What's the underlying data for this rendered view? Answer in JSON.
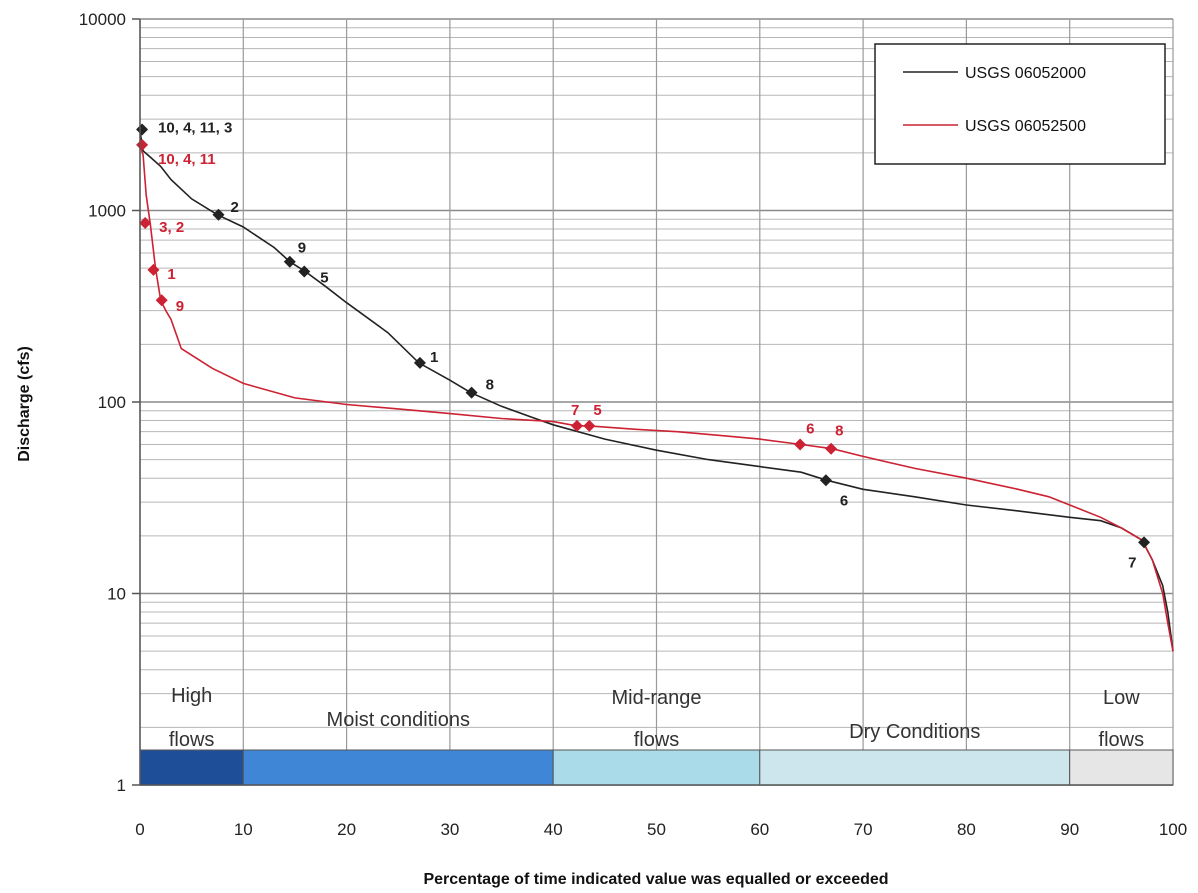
{
  "chart_data": {
    "type": "line",
    "title": "",
    "xlabel": "Percentage of time indicated value was equalled or exceeded",
    "ylabel": "Discharge (cfs)",
    "xlim": [
      0,
      100
    ],
    "ylim": [
      1,
      10000
    ],
    "yscale": "log",
    "grid": true,
    "legend_position": "top-right",
    "x_ticks": [
      "0",
      "10",
      "20",
      "30",
      "40",
      "50",
      "60",
      "70",
      "80",
      "90",
      "100"
    ],
    "y_ticks": [
      "1",
      "10",
      "100",
      "1000",
      "10000"
    ],
    "series": [
      {
        "name": "USGS 06052000",
        "color": "#222222",
        "x": [
          0,
          0.3,
          1,
          2,
          3,
          5,
          7.5,
          10,
          13,
          14.5,
          16,
          18,
          20,
          24,
          27,
          30,
          32,
          35,
          38,
          40,
          45,
          50,
          55,
          60,
          64,
          66.5,
          70,
          75,
          80,
          85,
          90,
          93,
          95,
          97,
          98,
          99,
          99.5,
          100
        ],
        "y": [
          2600,
          2050,
          1900,
          1700,
          1450,
          1150,
          950,
          820,
          640,
          540,
          480,
          400,
          330,
          230,
          160,
          130,
          112,
          95,
          83,
          76,
          64,
          56,
          50,
          46,
          43,
          39,
          35,
          32,
          29,
          27,
          25,
          24,
          22,
          19,
          15,
          11,
          8,
          5
        ]
      },
      {
        "name": "USGS 06052500",
        "color": "#cc2233",
        "x": [
          0,
          0.3,
          0.6,
          1,
          1.5,
          2,
          2.5,
          3,
          4,
          7,
          10,
          15,
          20,
          25,
          30,
          35,
          40,
          42.3,
          43.5,
          48,
          52,
          56,
          60,
          64,
          67,
          70,
          75,
          80,
          85,
          88,
          90,
          93,
          95,
          97,
          98,
          99,
          99.5,
          100
        ],
        "y": [
          2200,
          1950,
          1200,
          850,
          500,
          340,
          300,
          270,
          190,
          150,
          125,
          105,
          97,
          92,
          87,
          82,
          79,
          75,
          75,
          72,
          70,
          67,
          64,
          60,
          57,
          52,
          45,
          40,
          35,
          32,
          29,
          25,
          22,
          19,
          15,
          10,
          7,
          5
        ]
      }
    ],
    "markers": [
      {
        "series": "USGS 06052000",
        "x": 0.2,
        "y": 2650,
        "label": "10, 4, 11, 3"
      },
      {
        "series": "USGS 06052000",
        "x": 7.6,
        "y": 950,
        "label": "2"
      },
      {
        "series": "USGS 06052000",
        "x": 14.5,
        "y": 540,
        "label": "9"
      },
      {
        "series": "USGS 06052000",
        "x": 15.9,
        "y": 480,
        "label": "5"
      },
      {
        "series": "USGS 06052000",
        "x": 27.1,
        "y": 160,
        "label": "1"
      },
      {
        "series": "USGS 06052000",
        "x": 32.1,
        "y": 112,
        "label": "8"
      },
      {
        "series": "USGS 06052000",
        "x": 66.4,
        "y": 39,
        "label": "6"
      },
      {
        "series": "USGS 06052000",
        "x": 97.2,
        "y": 18.5,
        "label": "7"
      },
      {
        "series": "USGS 06052500",
        "x": 0.2,
        "y": 2200,
        "label": "10, 4, 11"
      },
      {
        "series": "USGS 06052500",
        "x": 0.5,
        "y": 860,
        "label": "3, 2"
      },
      {
        "series": "USGS 06052500",
        "x": 1.3,
        "y": 490,
        "label": "1"
      },
      {
        "series": "USGS 06052500",
        "x": 2.1,
        "y": 340,
        "label": "9"
      },
      {
        "series": "USGS 06052500",
        "x": 42.3,
        "y": 75,
        "label": "7"
      },
      {
        "series": "USGS 06052500",
        "x": 43.5,
        "y": 75,
        "label": "5"
      },
      {
        "series": "USGS 06052500",
        "x": 63.9,
        "y": 60,
        "label": "6"
      },
      {
        "series": "USGS 06052500",
        "x": 66.9,
        "y": 57,
        "label": "8"
      }
    ],
    "zones": [
      {
        "label_lines": [
          "High",
          "flows"
        ],
        "from": 0,
        "to": 10,
        "color": "#1f4e99"
      },
      {
        "label_lines": [
          "Moist conditions"
        ],
        "from": 10,
        "to": 40,
        "color": "#3f86d6"
      },
      {
        "label_lines": [
          "Mid-range",
          "flows"
        ],
        "from": 40,
        "to": 60,
        "color": "#a9dbe8"
      },
      {
        "label_lines": [
          "Dry Conditions"
        ],
        "from": 60,
        "to": 90,
        "color": "#cde6ee"
      },
      {
        "label_lines": [
          "Low",
          "flows"
        ],
        "from": 90,
        "to": 100,
        "color": "#e6e6e6"
      }
    ]
  }
}
